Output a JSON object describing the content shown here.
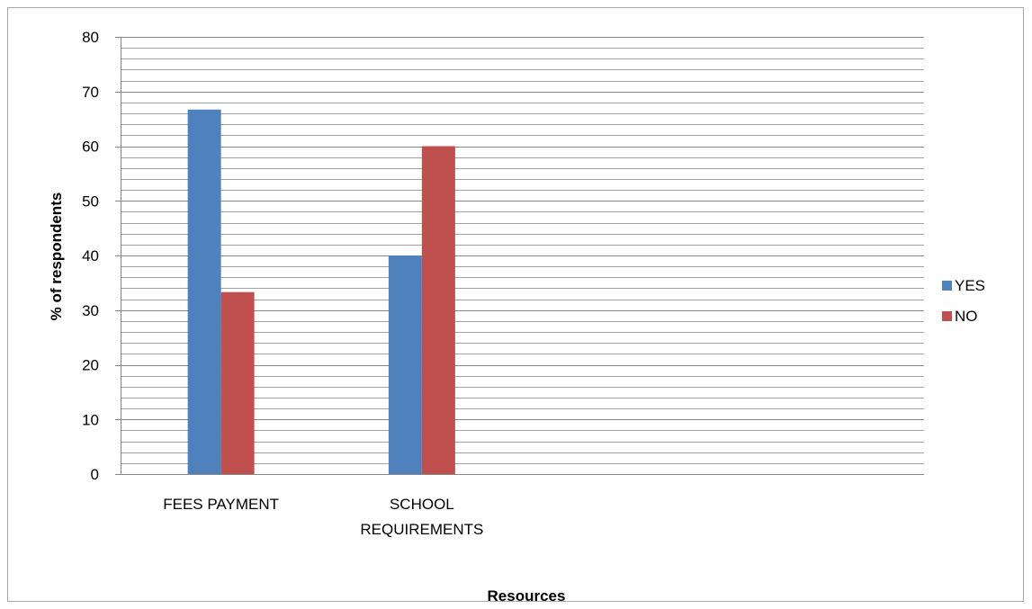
{
  "chart_data": {
    "type": "bar",
    "categories": [
      "FEES PAYMENT",
      "SCHOOL REQUIREMENTS"
    ],
    "category_lines": [
      [
        "FEES PAYMENT"
      ],
      [
        "SCHOOL",
        "REQUIREMENTS"
      ]
    ],
    "slot_count": 4,
    "series": [
      {
        "name": "YES",
        "values": [
          66.7,
          40
        ],
        "color": "#4f81bd"
      },
      {
        "name": "NO",
        "values": [
          33.3,
          60
        ],
        "color": "#c0504d"
      }
    ],
    "title": "",
    "xlabel": "Resources",
    "ylabel": "% of respondents",
    "ylim": [
      0,
      80
    ],
    "yticks": [
      0,
      10,
      20,
      30,
      40,
      50,
      60,
      70,
      80
    ],
    "minor_gridlines_per_major": 5,
    "grid": true,
    "legend_position": "right"
  }
}
